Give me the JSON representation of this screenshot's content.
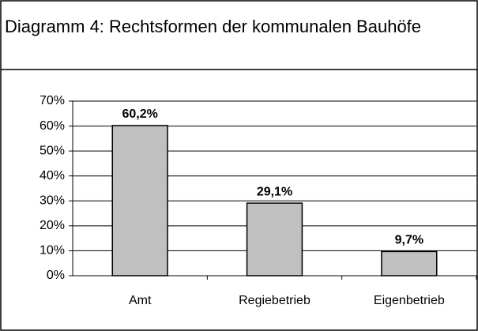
{
  "chart_data": {
    "type": "bar",
    "title": "Diagramm 4: Rechtsformen der kommunalen Bauhöfe",
    "categories": [
      "Amt",
      "Regiebetrieb",
      "Eigenbetrieb"
    ],
    "values": [
      60.2,
      29.1,
      9.7
    ],
    "value_labels": [
      "60,2%",
      "29,1%",
      "9,7%"
    ],
    "color": "#c0c0c0",
    "ylim": [
      0,
      70
    ],
    "yticks": [
      {
        "value": 0,
        "label": "0%"
      },
      {
        "value": 10,
        "label": "10%"
      },
      {
        "value": 20,
        "label": "20%"
      },
      {
        "value": 30,
        "label": "30%"
      },
      {
        "value": 40,
        "label": "40%"
      },
      {
        "value": 50,
        "label": "50%"
      },
      {
        "value": 60,
        "label": "60%"
      },
      {
        "value": 70,
        "label": "70%"
      }
    ],
    "grid": true
  }
}
